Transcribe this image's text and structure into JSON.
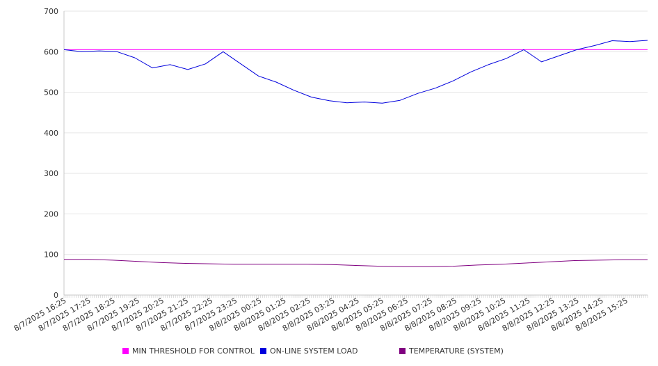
{
  "chart_data": {
    "type": "line",
    "ylim": [
      0,
      700
    ],
    "y_ticks": [
      0,
      100,
      200,
      300,
      400,
      500,
      600,
      700
    ],
    "x_tick_labels": [
      "8/7/2025 16:25",
      "8/7/2025 17:25",
      "8/7/2025 18:25",
      "8/7/2025 19:25",
      "8/7/2025 20:25",
      "8/7/2025 21:25",
      "8/7/2025 22:25",
      "8/7/2025 23:25",
      "8/8/2025 00:25",
      "8/8/2025 01:25",
      "8/8/2025 02:25",
      "8/8/2025 03:25",
      "8/8/2025 04:25",
      "8/8/2025 05:25",
      "8/8/2025 06:25",
      "8/8/2025 07:25",
      "8/8/2025 08:25",
      "8/8/2025 09:25",
      "8/8/2025 10:25",
      "8/8/2025 11:25",
      "8/8/2025 12:25",
      "8/8/2025 13:25",
      "8/8/2025 14:25",
      "8/8/2025 15:25"
    ],
    "grid": "horizontal",
    "legend_position": "bottom",
    "series": [
      {
        "name": "MIN THRESHOLD FOR CONTROL",
        "color": "#ff00ff",
        "values": [
          605,
          605,
          605,
          605,
          605,
          605,
          605,
          605,
          605,
          605,
          605,
          605,
          605,
          605,
          605,
          605,
          605,
          605,
          605,
          605,
          605,
          605,
          605,
          605,
          605
        ]
      },
      {
        "name": "ON-LINE SYSTEM LOAD",
        "color": "#0000dd",
        "values": [
          605,
          600,
          602,
          600,
          585,
          560,
          568,
          556,
          570,
          600,
          570,
          540,
          525,
          505,
          488,
          479,
          474,
          476,
          473,
          480,
          497,
          510,
          528,
          550,
          568,
          583,
          605,
          575,
          590,
          605,
          615,
          627,
          625,
          628
        ]
      },
      {
        "name": "TEMPERATURE (SYSTEM)",
        "color": "#800080",
        "values": [
          88,
          88,
          86,
          83,
          80,
          78,
          77,
          76,
          76,
          76,
          76,
          75,
          73,
          71,
          70,
          70,
          71,
          74,
          76,
          79,
          82,
          85,
          86,
          87,
          87
        ]
      }
    ]
  }
}
